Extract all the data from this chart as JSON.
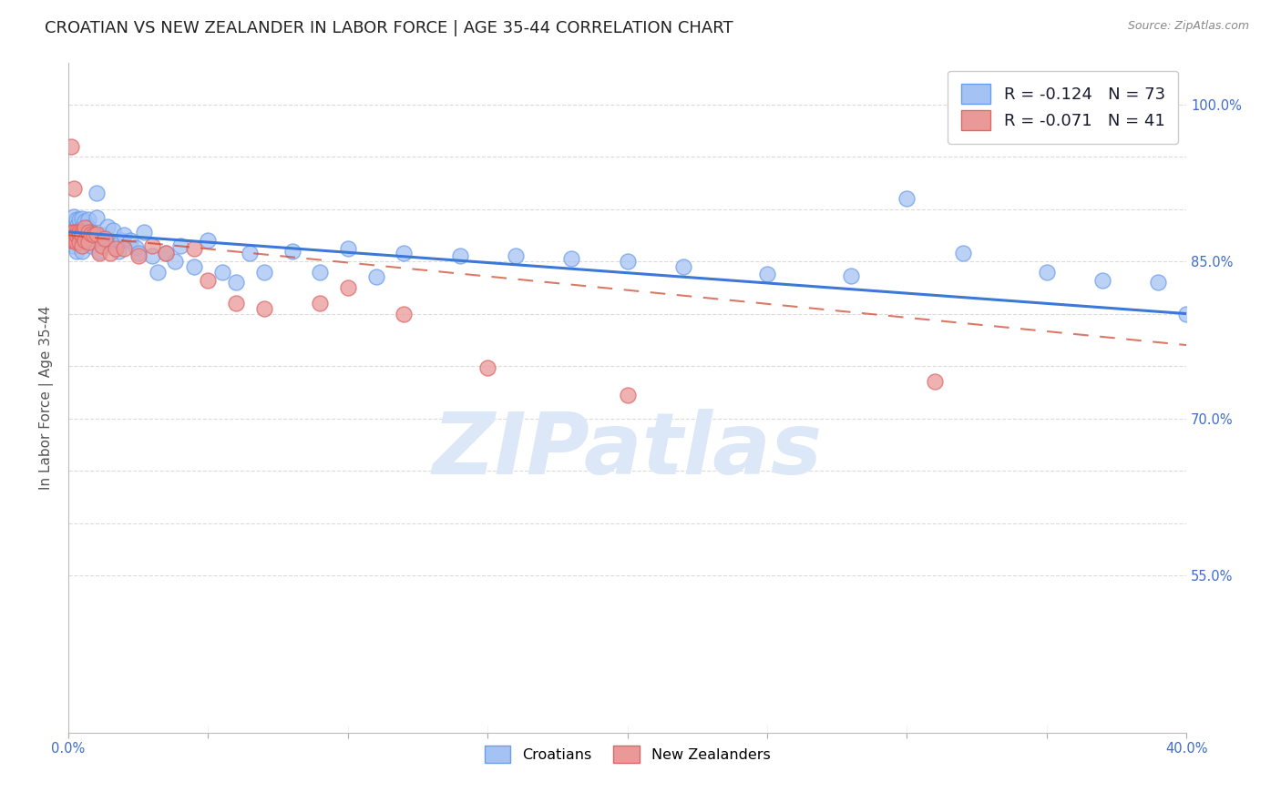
{
  "title": "CROATIAN VS NEW ZEALANDER IN LABOR FORCE | AGE 35-44 CORRELATION CHART",
  "source": "Source: ZipAtlas.com",
  "ylabel_label": "In Labor Force | Age 35-44",
  "xlim": [
    0.0,
    0.4
  ],
  "ylim": [
    0.4,
    1.04
  ],
  "legend_blue_label": "R = -0.124   N = 73",
  "legend_pink_label": "R = -0.071   N = 41",
  "blue_color": "#a4c2f4",
  "pink_color": "#ea9999",
  "blue_edge_color": "#6d9eeb",
  "pink_edge_color": "#e06666",
  "blue_line_color": "#3c78d8",
  "pink_line_color": "#cc4125",
  "watermark": "ZIPatlas",
  "blue_scatter_x": [
    0.001,
    0.001,
    0.001,
    0.002,
    0.002,
    0.002,
    0.002,
    0.003,
    0.003,
    0.003,
    0.003,
    0.003,
    0.004,
    0.004,
    0.004,
    0.004,
    0.005,
    0.005,
    0.005,
    0.005,
    0.006,
    0.006,
    0.006,
    0.007,
    0.007,
    0.008,
    0.008,
    0.009,
    0.01,
    0.01,
    0.011,
    0.012,
    0.013,
    0.014,
    0.015,
    0.016,
    0.017,
    0.018,
    0.019,
    0.02,
    0.022,
    0.024,
    0.025,
    0.027,
    0.03,
    0.032,
    0.035,
    0.038,
    0.04,
    0.045,
    0.05,
    0.055,
    0.06,
    0.065,
    0.07,
    0.08,
    0.09,
    0.1,
    0.11,
    0.12,
    0.14,
    0.16,
    0.18,
    0.2,
    0.22,
    0.25,
    0.28,
    0.3,
    0.32,
    0.35,
    0.37,
    0.39,
    0.4
  ],
  "blue_scatter_y": [
    0.878,
    0.872,
    0.882,
    0.88,
    0.875,
    0.893,
    0.865,
    0.878,
    0.868,
    0.89,
    0.883,
    0.86,
    0.89,
    0.88,
    0.87,
    0.875,
    0.891,
    0.882,
    0.878,
    0.86,
    0.888,
    0.875,
    0.87,
    0.89,
    0.882,
    0.878,
    0.865,
    0.872,
    0.915,
    0.892,
    0.86,
    0.875,
    0.868,
    0.883,
    0.87,
    0.88,
    0.865,
    0.86,
    0.87,
    0.875,
    0.87,
    0.863,
    0.858,
    0.878,
    0.855,
    0.84,
    0.858,
    0.85,
    0.865,
    0.845,
    0.87,
    0.84,
    0.83,
    0.858,
    0.84,
    0.86,
    0.84,
    0.862,
    0.835,
    0.858,
    0.855,
    0.855,
    0.853,
    0.85,
    0.845,
    0.838,
    0.836,
    0.91,
    0.858,
    0.84,
    0.832,
    0.83,
    0.8
  ],
  "pink_scatter_x": [
    0.001,
    0.001,
    0.001,
    0.002,
    0.002,
    0.002,
    0.003,
    0.003,
    0.003,
    0.004,
    0.004,
    0.004,
    0.005,
    0.005,
    0.005,
    0.006,
    0.006,
    0.007,
    0.007,
    0.008,
    0.009,
    0.01,
    0.011,
    0.012,
    0.013,
    0.015,
    0.017,
    0.02,
    0.025,
    0.03,
    0.035,
    0.045,
    0.05,
    0.06,
    0.07,
    0.09,
    0.1,
    0.12,
    0.15,
    0.2,
    0.31
  ],
  "pink_scatter_y": [
    0.96,
    0.878,
    0.87,
    0.87,
    0.92,
    0.878,
    0.878,
    0.868,
    0.875,
    0.875,
    0.868,
    0.878,
    0.878,
    0.875,
    0.865,
    0.882,
    0.87,
    0.878,
    0.868,
    0.876,
    0.875,
    0.876,
    0.858,
    0.865,
    0.872,
    0.858,
    0.862,
    0.862,
    0.855,
    0.865,
    0.858,
    0.862,
    0.832,
    0.81,
    0.805,
    0.81,
    0.825,
    0.8,
    0.748,
    0.722,
    0.735
  ],
  "blue_trend_x": [
    0.0,
    0.4
  ],
  "blue_trend_y": [
    0.878,
    0.8
  ],
  "pink_trend_x": [
    0.0,
    0.4
  ],
  "pink_trend_y": [
    0.875,
    0.77
  ],
  "background_color": "#ffffff",
  "grid_color": "#cccccc",
  "title_fontsize": 13,
  "axis_label_fontsize": 11,
  "tick_fontsize": 10.5,
  "watermark_color": "#dce8f8",
  "watermark_fontsize": 68,
  "ytick_positions": [
    0.55,
    0.6,
    0.65,
    0.7,
    0.75,
    0.8,
    0.85,
    0.9,
    0.95,
    1.0
  ],
  "ytick_labels": [
    "55.0%",
    "",
    "",
    "70.0%",
    "",
    "",
    "85.0%",
    "",
    "",
    "100.0%"
  ],
  "xtick_positions": [
    0.0,
    0.05,
    0.1,
    0.15,
    0.2,
    0.25,
    0.3,
    0.35,
    0.4
  ],
  "xtick_labels": [
    "0.0%",
    "",
    "",
    "",
    "",
    "",
    "",
    "",
    "40.0%"
  ]
}
